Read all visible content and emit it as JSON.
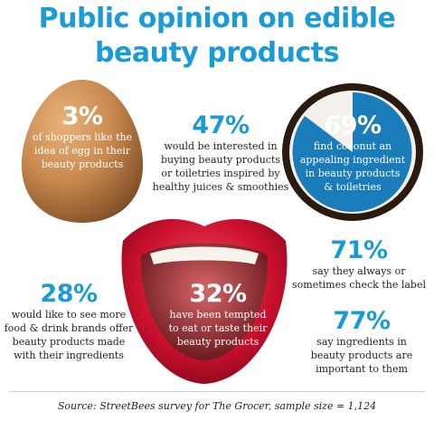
{
  "title_line1": "Public opinion on edible",
  "title_line2": "beauty products",
  "stats": {
    "egg": {
      "pct": "3%",
      "line1": "of shoppers like the",
      "line2": "idea of egg in their",
      "line3": "beauty products"
    },
    "juice": {
      "pct": "47%",
      "line1": "would be interested in",
      "line2": "buying beauty products",
      "line3": "or toiletries inspired by",
      "line4": "healthy juices & smoothies"
    },
    "coconut": {
      "pct": "69%",
      "line1": "find coconut an",
      "line2": "appealing ingredient",
      "line3": "in beauty products",
      "line4": "& toiletries"
    },
    "label": {
      "pct": "71%",
      "line1": "say they always or",
      "line2": "sometimes check the label"
    },
    "brands": {
      "pct": "28%",
      "line1": "would like to see more",
      "line2": "food & drink brands offer",
      "line3": "beauty products made",
      "line4": "with their ingredients"
    },
    "taste": {
      "pct": "32%",
      "line1": "have been tempted",
      "line2": "to eat or taste their",
      "line3": "beauty products"
    },
    "ingredients": {
      "pct": "77%",
      "line1": "say ingredients in",
      "line2": "beauty products are",
      "line3": "important to them"
    }
  },
  "source": "Source: StreetBees survey for The Grocer, sample size = 1,124",
  "colors": {
    "accent": "#1a9bd7",
    "egg": "#c98a4f",
    "lips": "#c8102e"
  },
  "images": [
    "egg",
    "coconut",
    "lips"
  ]
}
